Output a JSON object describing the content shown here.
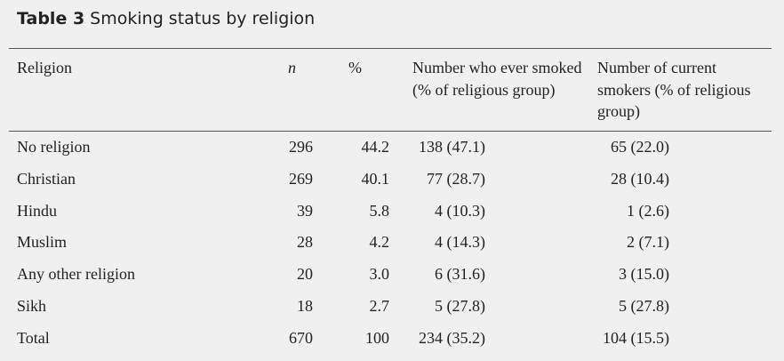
{
  "title": {
    "label": "Table 3",
    "text": "Smoking status by religion"
  },
  "table": {
    "header": [
      "Religion",
      "n",
      "%",
      "Number who ever smoked (% of religious group)",
      "Number of current smokers (% of religious group)"
    ],
    "rows": [
      [
        "No religion",
        "296",
        "44.2",
        "138 (47.1)",
        "65 (22.0)"
      ],
      [
        "Christian",
        "269",
        "40.1",
        "77 (28.7)",
        "28 (10.4)"
      ],
      [
        "Hindu",
        "39",
        "5.8",
        "4 (10.3)",
        "1 (2.6)"
      ],
      [
        "Muslim",
        "28",
        "4.2",
        "4 (14.3)",
        "2 (7.1)"
      ],
      [
        "Any other religion",
        "20",
        "3.0",
        "6 (31.6)",
        "3 (15.0)"
      ],
      [
        "Sikh",
        "18",
        "2.7",
        "5 (27.8)",
        "5 (27.8)"
      ],
      [
        "Total",
        "670",
        "100",
        "234 (35.2)",
        "104 (15.5)"
      ]
    ]
  }
}
